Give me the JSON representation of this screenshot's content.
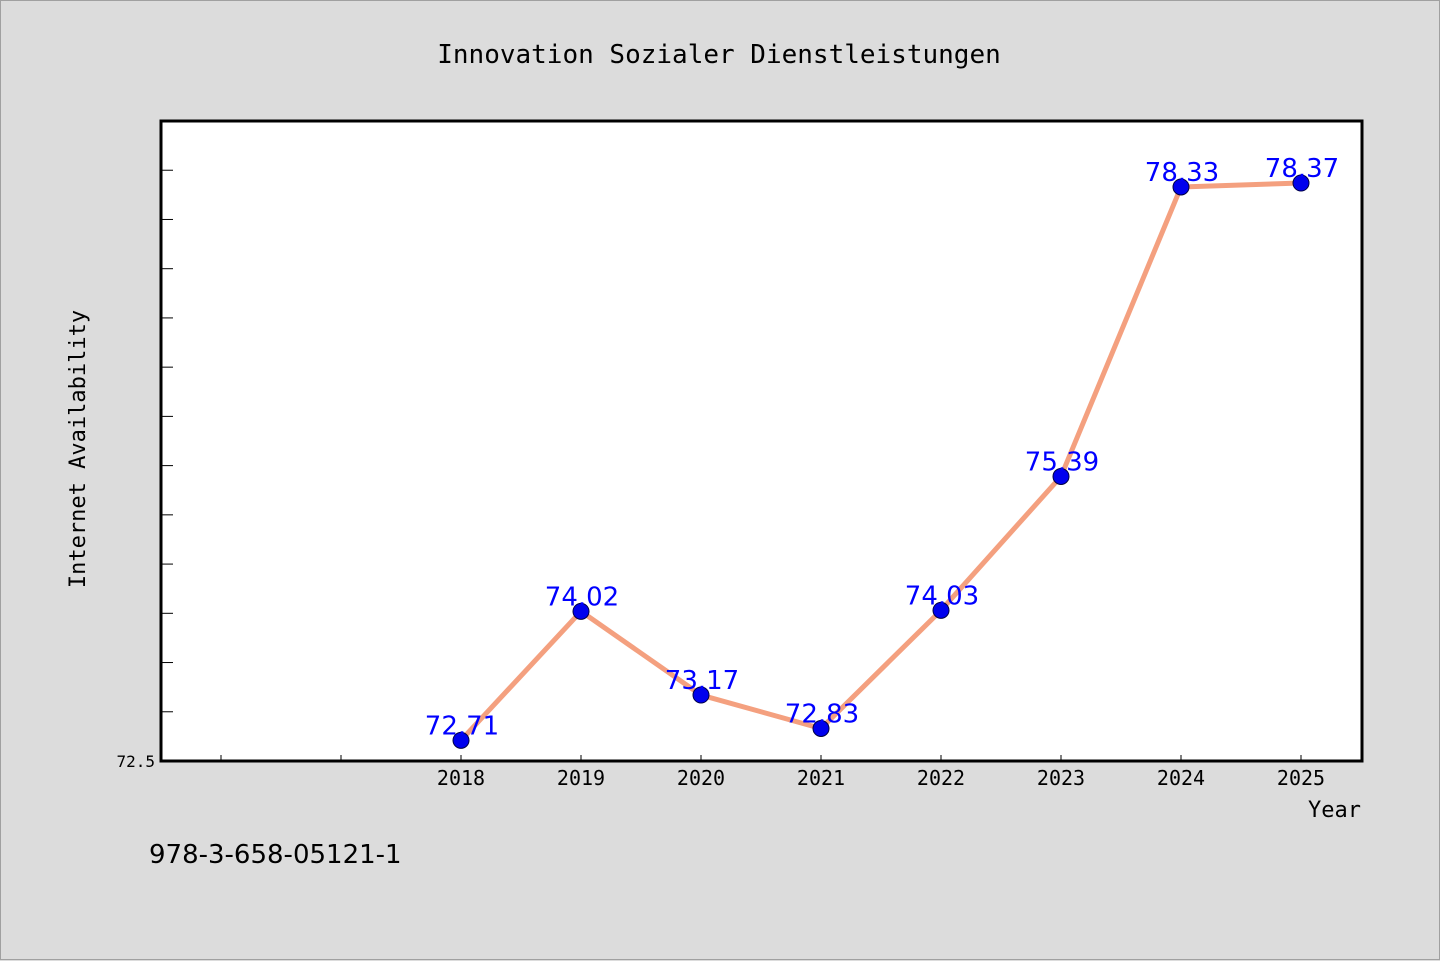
{
  "chart_data": {
    "type": "line",
    "title": "Innovation Sozialer Dienstleistungen",
    "xlabel": "Year",
    "ylabel": "Internet Availability",
    "categories": [
      "",
      "",
      "2018",
      "2019",
      "2020",
      "2021",
      "2022",
      "2023",
      "2024",
      "2025"
    ],
    "series": [
      {
        "values": [
          null,
          null,
          72.71,
          74.02,
          73.17,
          72.83,
          74.03,
          75.39,
          78.33,
          78.37
        ],
        "labels": [
          "",
          "",
          "72.71",
          "74.02",
          "73.17",
          "72.83",
          "74.03",
          "75.39",
          "78.33",
          "78.37"
        ]
      }
    ],
    "ylim": [
      72.5,
      79.0
    ],
    "yticks": [
      "72.5"
    ],
    "grid": false,
    "legend": "none",
    "colors": {
      "line": "#f4a07f",
      "marker": "#0000ee",
      "label": "#0000ff",
      "background": "#dcdcdc",
      "plot": "#ffffff"
    }
  },
  "footer": {
    "isbn": "978-3-658-05121-1"
  }
}
